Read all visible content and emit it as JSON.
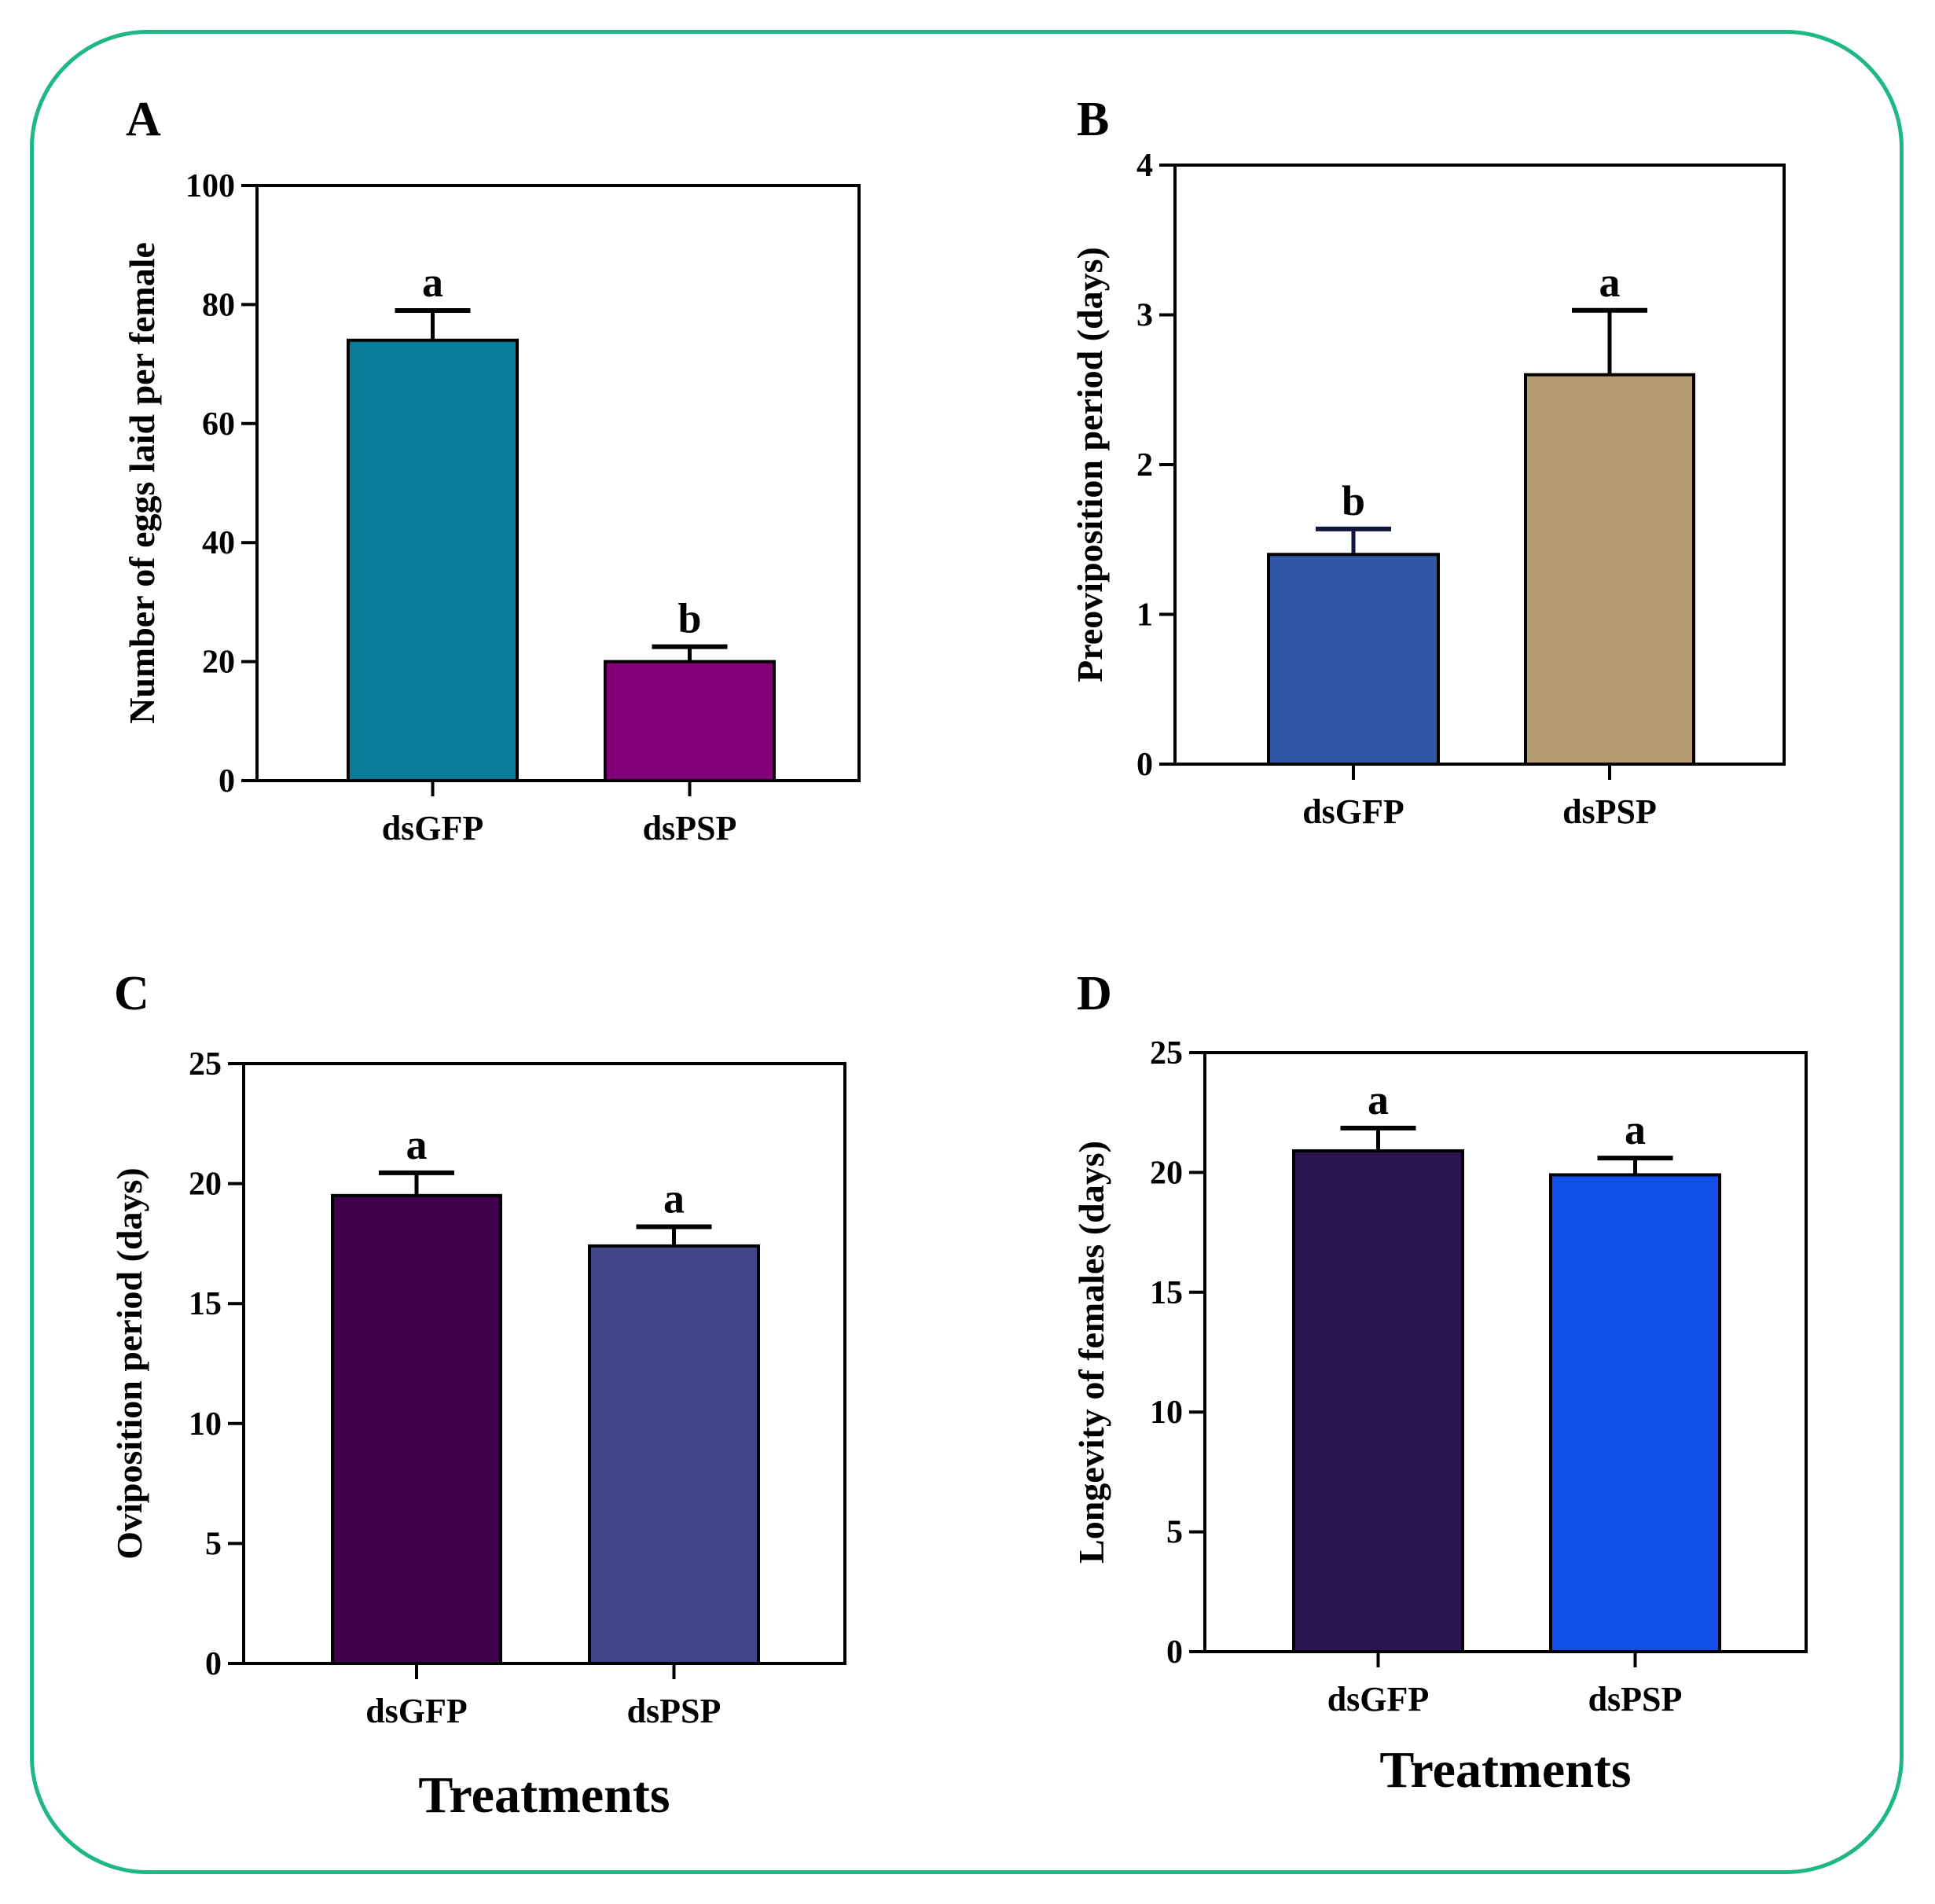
{
  "colors": {
    "frame": "#1db981",
    "axis": "#000000"
  },
  "chart_data": [
    {
      "panel": "A",
      "type": "bar",
      "categories": [
        "dsGFP",
        "dsPSP"
      ],
      "values": [
        74,
        20
      ],
      "errors": [
        5,
        2.5
      ],
      "significance": [
        "a",
        "b"
      ],
      "colors": [
        "#077c97",
        "#820079"
      ],
      "ylabel": "Number of eggs laid per female",
      "xlabel": "",
      "ylim": [
        0,
        100
      ],
      "yticks": [
        0,
        20,
        40,
        60,
        80,
        100
      ]
    },
    {
      "panel": "B",
      "type": "bar",
      "categories": [
        "dsGFP",
        "dsPSP"
      ],
      "values": [
        1.4,
        2.6
      ],
      "errors": [
        0.17,
        0.43
      ],
      "significance": [
        "b",
        "a"
      ],
      "colors": [
        "#2e58a6",
        "#b49d72"
      ],
      "error_colors": [
        "#13163f",
        "#000000"
      ],
      "ylabel": "Preoviposition period (days)",
      "xlabel": "",
      "ylim": [
        0,
        4
      ],
      "yticks": [
        0,
        1,
        2,
        3,
        4
      ]
    },
    {
      "panel": "C",
      "type": "bar",
      "categories": [
        "dsGFP",
        "dsPSP"
      ],
      "values": [
        19.5,
        17.4
      ],
      "errors": [
        0.95,
        0.8
      ],
      "significance": [
        "a",
        "a"
      ],
      "colors": [
        "#40004c",
        "#404489"
      ],
      "ylabel": "Oviposition period (days)",
      "xlabel": "Treatments",
      "ylim": [
        0,
        25
      ],
      "yticks": [
        0,
        5,
        10,
        15,
        20,
        25
      ]
    },
    {
      "panel": "D",
      "type": "bar",
      "categories": [
        "dsGFP",
        "dsPSP"
      ],
      "values": [
        20.9,
        19.9
      ],
      "errors": [
        0.95,
        0.7
      ],
      "significance": [
        "a",
        "a"
      ],
      "colors": [
        "#2a154e",
        "#1150e8"
      ],
      "ylabel": "Longevity of females (days)",
      "xlabel": "Treatments",
      "ylim": [
        0,
        25
      ],
      "yticks": [
        0,
        5,
        10,
        15,
        20,
        25
      ]
    }
  ]
}
